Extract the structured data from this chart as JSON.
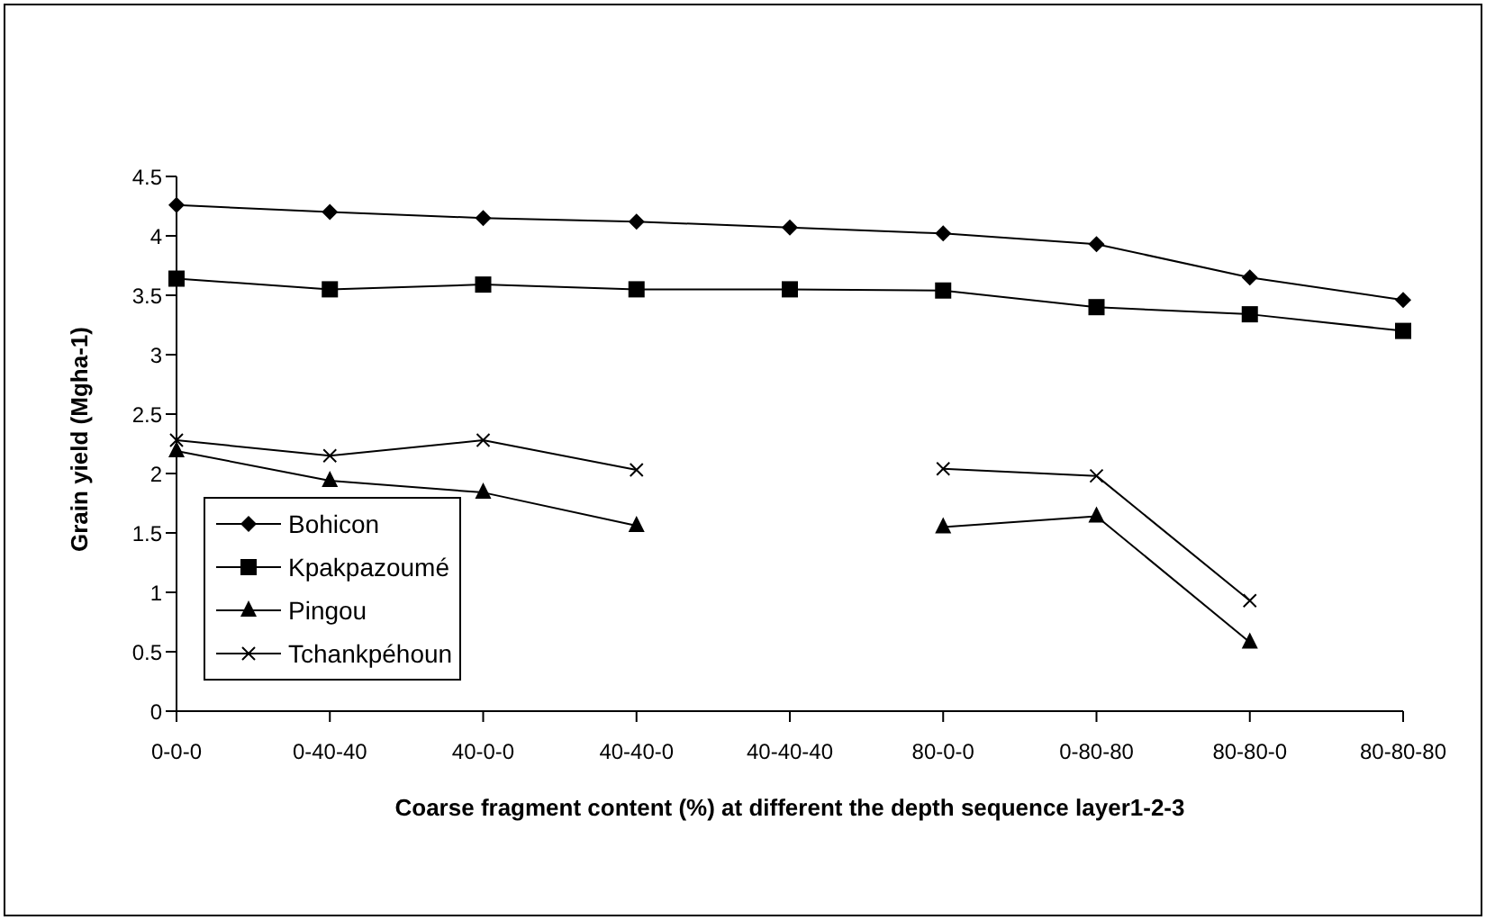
{
  "chart_data": {
    "type": "line",
    "xlabel": "Coarse fragment content (%) at different the depth sequence layer1-2-3",
    "ylabel": "Grain yield (Mgha-1)",
    "categories": [
      "0-0-0",
      "0-40-40",
      "40-0-0",
      "40-40-0",
      "40-40-40",
      "80-0-0",
      "0-80-80",
      "80-80-0",
      "80-80-80"
    ],
    "ylim": [
      0,
      4.5
    ],
    "yticks": [
      0,
      0.5,
      1,
      1.5,
      2,
      2.5,
      3,
      3.5,
      4,
      4.5
    ],
    "legend": "bottom left",
    "line_style": "solid",
    "series": [
      {
        "name": "Bohicon",
        "color": "#000000",
        "marker": "diamond",
        "values": [
          4.26,
          4.2,
          4.15,
          4.12,
          4.07,
          4.02,
          3.93,
          3.65,
          3.46
        ]
      },
      {
        "name": "Kpakpazoumé",
        "color": "#000000",
        "marker": "square",
        "values": [
          3.64,
          3.55,
          3.59,
          3.55,
          3.55,
          3.54,
          3.4,
          3.34,
          3.2
        ]
      },
      {
        "name": "Pingou",
        "color": "#000000",
        "marker": "triangle",
        "values": [
          2.19,
          1.94,
          1.84,
          1.56,
          null,
          1.55,
          1.64,
          0.58,
          null
        ]
      },
      {
        "name": "Tchankpéhoun",
        "color": "#000000",
        "marker": "cross",
        "values": [
          2.28,
          2.15,
          2.28,
          2.03,
          null,
          2.04,
          1.98,
          0.93,
          null
        ]
      }
    ]
  }
}
